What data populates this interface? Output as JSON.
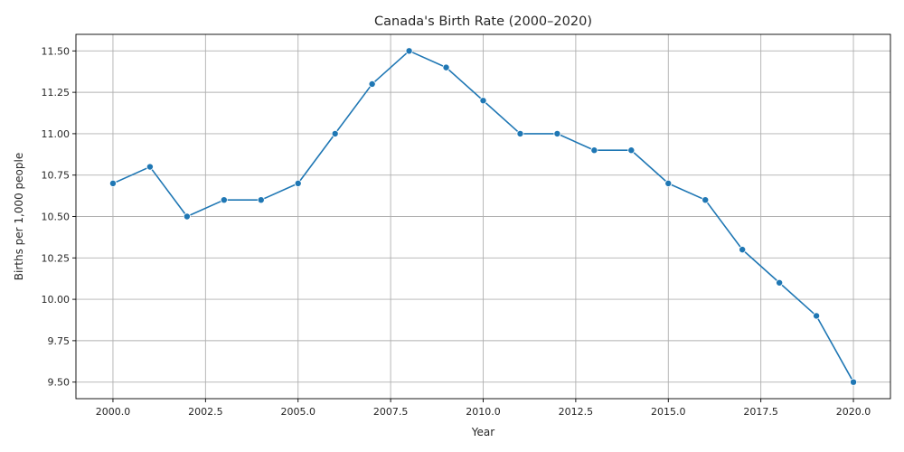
{
  "chart_data": {
    "type": "line",
    "title": "Canada's Birth Rate (2000–2020)",
    "xlabel": "Year",
    "ylabel": "Births per 1,000 people",
    "xlim": [
      1999.0,
      2021.0
    ],
    "ylim": [
      9.4,
      11.6
    ],
    "xticks": [
      2000.0,
      2002.5,
      2005.0,
      2007.5,
      2010.0,
      2012.5,
      2015.0,
      2017.5,
      2020.0
    ],
    "xtick_labels": [
      "2000.0",
      "2002.5",
      "2005.0",
      "2007.5",
      "2010.0",
      "2012.5",
      "2015.0",
      "2017.5",
      "2020.0"
    ],
    "yticks": [
      9.5,
      9.75,
      10.0,
      10.25,
      10.5,
      10.75,
      11.0,
      11.25,
      11.5
    ],
    "ytick_labels": [
      "9.50",
      "9.75",
      "10.00",
      "10.25",
      "10.50",
      "10.75",
      "11.00",
      "11.25",
      "11.50"
    ],
    "grid": true,
    "color": "#1f77b4",
    "marker": "circle",
    "series": [
      {
        "x": [
          2000,
          2001,
          2002,
          2003,
          2004,
          2005,
          2006,
          2007,
          2008,
          2009,
          2010,
          2011,
          2012,
          2013,
          2014,
          2015,
          2016,
          2017,
          2018,
          2019,
          2020
        ],
        "values": [
          10.7,
          10.8,
          10.5,
          10.6,
          10.6,
          10.7,
          11.0,
          11.3,
          11.5,
          11.4,
          11.2,
          11.0,
          11.0,
          10.9,
          10.9,
          10.7,
          10.6,
          10.3,
          10.1,
          9.9,
          9.5
        ]
      }
    ]
  }
}
